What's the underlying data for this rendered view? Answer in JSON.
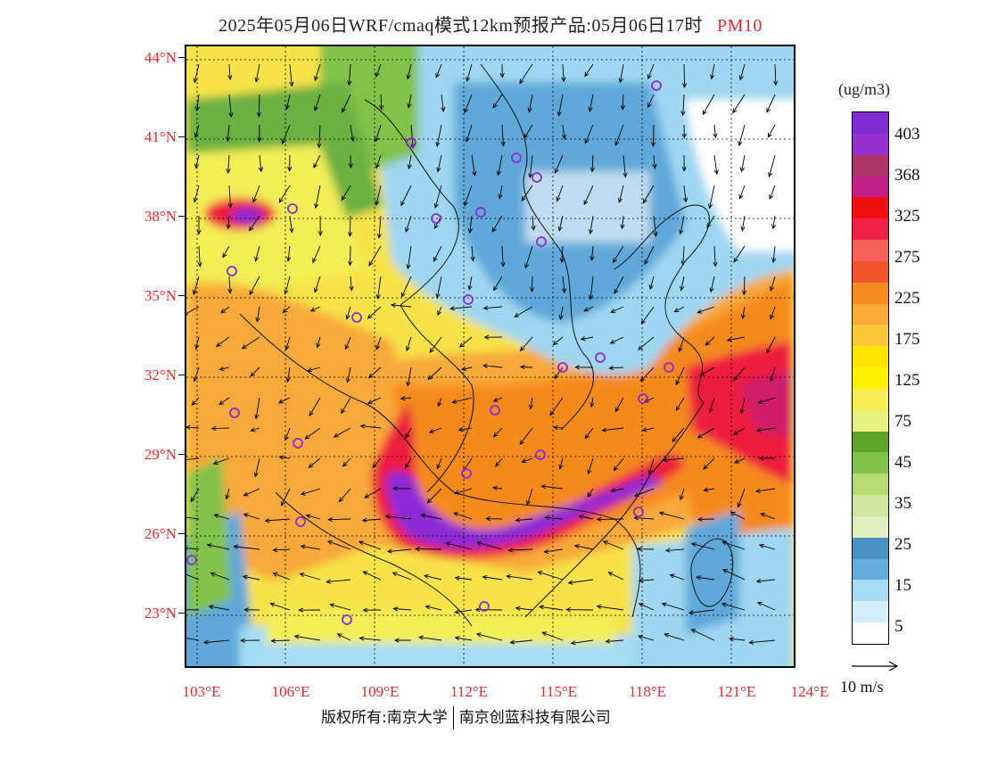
{
  "title": {
    "main": "2025年05月06日WRF/cmaq模式12km预报产品:05月06日17时",
    "species": "PM10"
  },
  "map": {
    "lat_labels": [
      "44°N",
      "41°N",
      "38°N",
      "35°N",
      "32°N",
      "29°N",
      "26°N",
      "23°N"
    ],
    "lon_labels": [
      "103°E",
      "106°E",
      "109°E",
      "112°E",
      "115°E",
      "118°E",
      "121°E",
      "124°E"
    ],
    "pollution_field_colors": {
      "clean": "#ffffff",
      "very_low": "#d6f0fb",
      "low": "#9fd7f2",
      "low_mid": "#5fa8d9",
      "green_light": "#c3e07a",
      "green": "#6bb043",
      "yellow_light": "#f1ee56",
      "yellow": "#ffe600",
      "orange_light": "#fbb736",
      "orange": "#f58a1f",
      "red": "#ee1f3d",
      "magenta": "#c21a7f",
      "purple": "#8c2bd6"
    }
  },
  "legend": {
    "units": "(ug/m3)",
    "labels": [
      "403",
      "368",
      "325",
      "275",
      "225",
      "175",
      "125",
      "75",
      "45",
      "35",
      "25",
      "15",
      "5"
    ],
    "colors": [
      "#7f2ed4",
      "#9631cf",
      "#ae3568",
      "#c41e88",
      "#ee0f0f",
      "#f2214c",
      "#f5625e",
      "#f0552c",
      "#f58a1f",
      "#f8a93a",
      "#fbc637",
      "#ffe600",
      "#fff200",
      "#f6ec55",
      "#e8f280",
      "#5da32e",
      "#82c24a",
      "#b8dc74",
      "#cfe79e",
      "#e2eec0",
      "#4a92c5",
      "#65ade0",
      "#a6dcf5",
      "#d5eefb",
      "#ffffff"
    ]
  },
  "wind_key": {
    "label": "10 m/s"
  },
  "footer": {
    "left": "版权所有:南京大学",
    "right": "南京创蓝科技有限公司"
  }
}
